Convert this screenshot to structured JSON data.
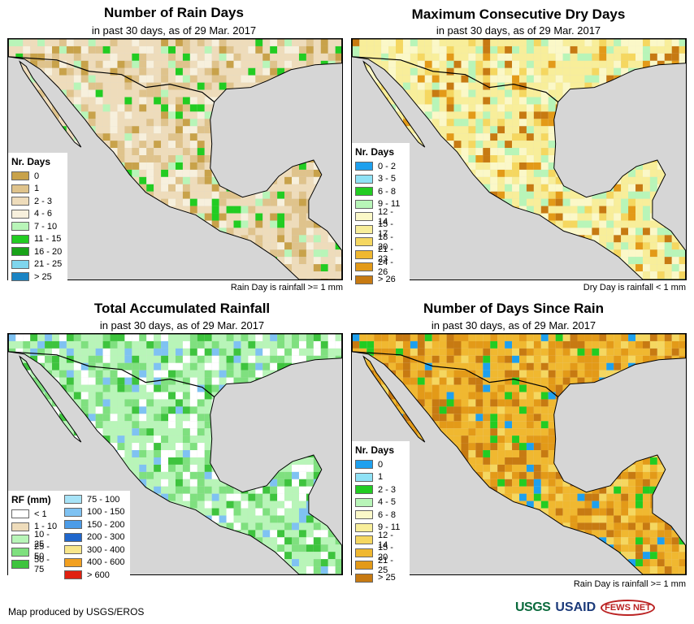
{
  "footer": {
    "credit": "Map produced by USGS/EROS"
  },
  "logos": {
    "usgs": "USGS",
    "usaid": "USAID",
    "fews": "FEWS NET"
  },
  "panels": [
    {
      "title": "Number of Rain Days",
      "subtitle": "in past 30 days, as of 29 Mar. 2017",
      "note": "Rain Day is rainfall >= 1 mm",
      "legend_title": "Nr. Days",
      "legend": [
        {
          "label": "0",
          "color": "#c8a24a"
        },
        {
          "label": "1",
          "color": "#dfc38c"
        },
        {
          "label": "2 - 3",
          "color": "#eedcbb"
        },
        {
          "label": "4 - 6",
          "color": "#f7f0dd"
        },
        {
          "label": "7 - 10",
          "color": "#b8f5b8"
        },
        {
          "label": "11 - 15",
          "color": "#22cc22"
        },
        {
          "label": "16 - 20",
          "color": "#19a319"
        },
        {
          "label": "21 - 25",
          "color": "#7fd6ee"
        },
        {
          "label": "> 25",
          "color": "#1a84c4"
        }
      ],
      "palette": [
        "#eedcbb",
        "#dfc38c",
        "#f7f0dd",
        "#c8a24a",
        "#b8f5b8",
        "#22cc22"
      ]
    },
    {
      "title": "Maximum Consecutive Dry Days",
      "subtitle": "in past 30 days, as of 29 Mar. 2017",
      "note": "Dry Day is rainfall < 1 mm",
      "legend_title": "Nr. Days",
      "legend": [
        {
          "label": "0 - 2",
          "color": "#1ea0ee"
        },
        {
          "label": "3 - 5",
          "color": "#8fe2f6"
        },
        {
          "label": "6 - 8",
          "color": "#22cc22"
        },
        {
          "label": "9 - 11",
          "color": "#b8f5b8"
        },
        {
          "label": "12 - 14",
          "color": "#fbf8c8"
        },
        {
          "label": "15 - 17",
          "color": "#f8ee9a"
        },
        {
          "label": "18 - 20",
          "color": "#f5d760"
        },
        {
          "label": "21 - 23",
          "color": "#f0b830"
        },
        {
          "label": "24 - 26",
          "color": "#e39a18"
        },
        {
          "label": "> 26",
          "color": "#c77a12"
        }
      ],
      "palette": [
        "#f8ee9a",
        "#fbf8c8",
        "#b8f5b8",
        "#f5d760",
        "#c77a12",
        "#e39a18"
      ]
    },
    {
      "title": "Total Accumulated Rainfall",
      "subtitle": "in past 30 days, as of 29 Mar. 2017",
      "note": "",
      "legend_title": "RF (mm)",
      "legend": [
        {
          "label": "< 1",
          "color": "#ffffff"
        },
        {
          "label": "1 - 10",
          "color": "#eedcbb"
        },
        {
          "label": "10 - 25",
          "color": "#b8f5b8"
        },
        {
          "label": "25 - 50",
          "color": "#7fe07f"
        },
        {
          "label": "50 - 75",
          "color": "#3ec43e"
        }
      ],
      "legend2": [
        {
          "label": "75 - 100",
          "color": "#a7e3f7"
        },
        {
          "label": "100 - 150",
          "color": "#7fc2f2"
        },
        {
          "label": "150 - 200",
          "color": "#4c9ce8"
        },
        {
          "label": "200 - 300",
          "color": "#1f66cc"
        },
        {
          "label": "300 - 400",
          "color": "#f8e68a"
        },
        {
          "label": "400 - 600",
          "color": "#f2a020"
        },
        {
          "label": "> 600",
          "color": "#e02010"
        }
      ],
      "palette": [
        "#b8f5b8",
        "#7fe07f",
        "#ffffff",
        "#3ec43e",
        "#7fc2f2",
        "#b8f5b8"
      ]
    },
    {
      "title": "Number of Days Since Rain",
      "subtitle": "in past 30 days, as of 29 Mar. 2017",
      "note": "Rain Day is rainfall >= 1 mm",
      "legend_title": "Nr. Days",
      "legend": [
        {
          "label": "0",
          "color": "#1ea0ee"
        },
        {
          "label": "1",
          "color": "#8fe2f6"
        },
        {
          "label": "2 - 3",
          "color": "#22cc22"
        },
        {
          "label": "4 - 5",
          "color": "#b8f5b8"
        },
        {
          "label": "6 - 8",
          "color": "#fbf8c8"
        },
        {
          "label": "9 - 11",
          "color": "#f8ee9a"
        },
        {
          "label": "12 - 14",
          "color": "#f5d760"
        },
        {
          "label": "15 - 20",
          "color": "#f0b830"
        },
        {
          "label": "21 - 25",
          "color": "#e39a18"
        },
        {
          "label": "> 25",
          "color": "#c77a12"
        }
      ],
      "palette": [
        "#f0b830",
        "#e39a18",
        "#c77a12",
        "#f5d760",
        "#22cc22",
        "#1ea0ee"
      ]
    }
  ]
}
